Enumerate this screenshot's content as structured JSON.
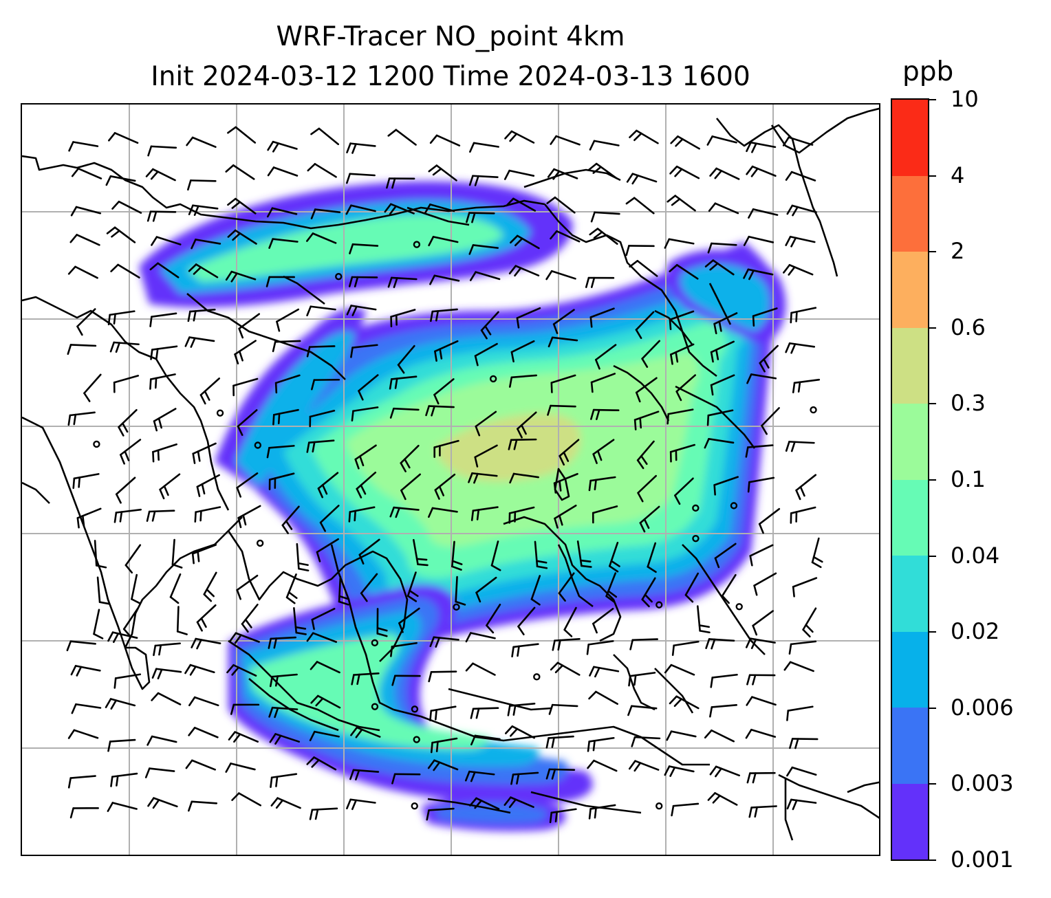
{
  "title": {
    "line1": "WRF-Tracer NO_point 4km",
    "line2": "Init 2024-03-12 1200 Time 2024-03-13 1600"
  },
  "colorbar": {
    "unit": "ppb",
    "levels": [
      "0.001",
      "0.003",
      "0.006",
      "0.02",
      "0.04",
      "0.1",
      "0.3",
      "0.6",
      "2",
      "4",
      "10"
    ],
    "colors": [
      "#6331fa",
      "#3a74f5",
      "#07b1ea",
      "#31ddd8",
      "#66fbb5",
      "#9bfb9a",
      "#cde084",
      "#fdaf5e",
      "#fd6f3b",
      "#fb2b17"
    ]
  },
  "map": {
    "coastline_color": "#000000",
    "gridline_color": "#b0b0b0",
    "barb_color": "#000000",
    "tracer_field": "NO_point",
    "level": "4km"
  }
}
